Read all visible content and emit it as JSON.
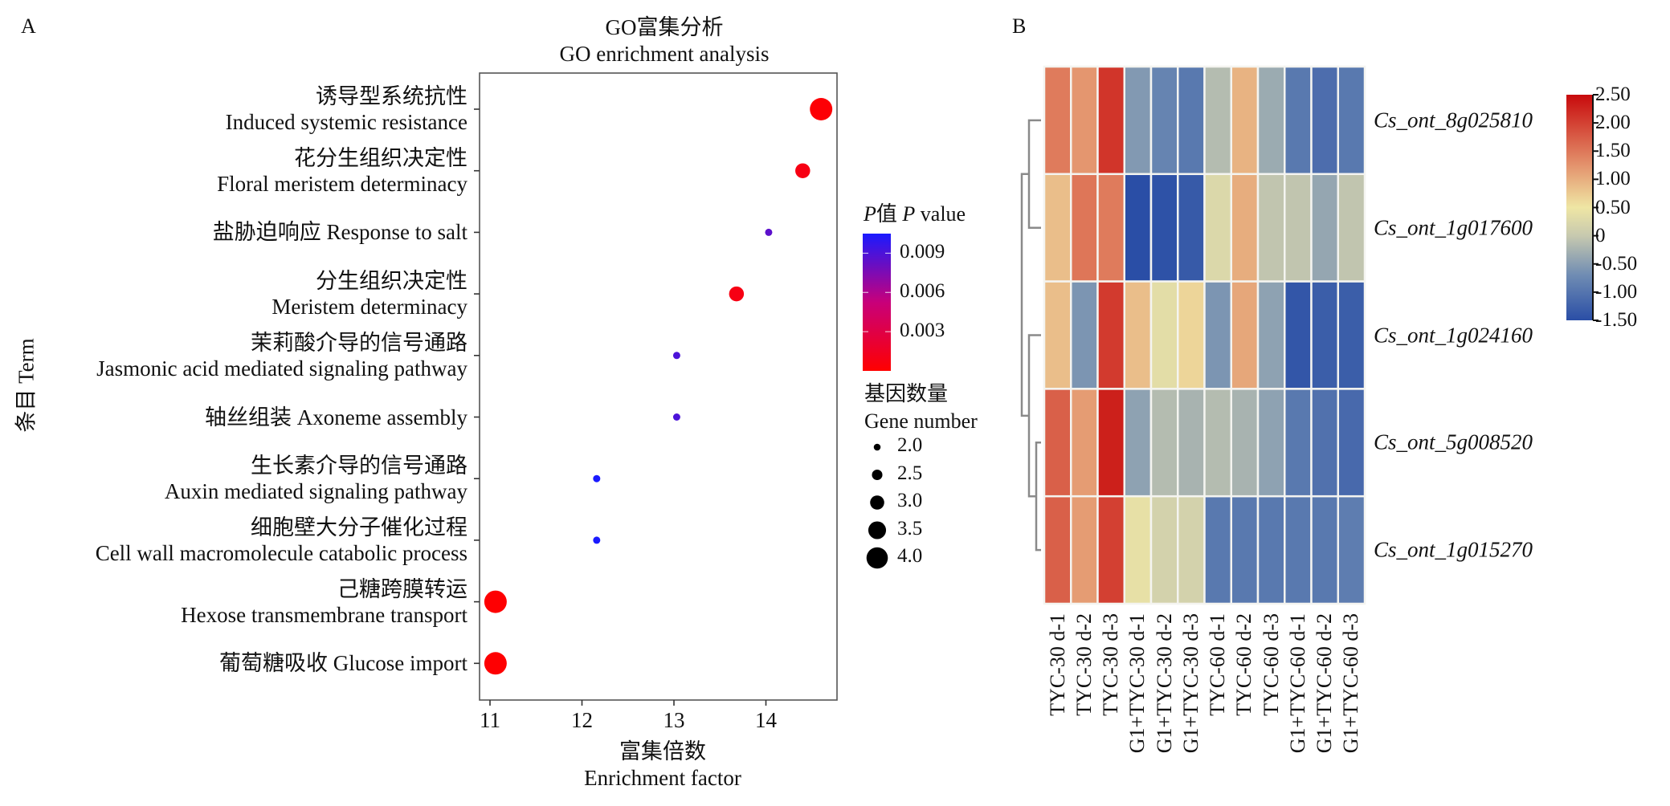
{
  "panel_a": {
    "label": "A",
    "title_cn": "GO富集分析",
    "title_en": "GO enrichment analysis",
    "ylabel": "条目 Term",
    "xlabel_cn": "富集倍数",
    "xlabel_en": "Enrichment factor",
    "pvalue_legend_title": "P值 P value",
    "pvalue_legend_ticks": [
      "0.009",
      "0.006",
      "0.003"
    ],
    "gene_legend_title_cn": "基因数量",
    "gene_legend_title_en": "Gene number",
    "gene_legend_items": [
      "2.0",
      "2.5",
      "3.0",
      "3.5",
      "4.0"
    ]
  },
  "panel_b": {
    "label": "B",
    "colorbar_ticks": [
      "2.50",
      "2.00",
      "1.50",
      "1.00",
      "0.50",
      "0",
      "-0.50",
      "-1.00",
      "-1.50"
    ]
  },
  "chart_data": [
    {
      "type": "scatter",
      "title": "GO富集分析 GO enrichment analysis",
      "xlabel": "富集倍数 Enrichment factor",
      "ylabel": "条目 Term",
      "xlim": [
        10.9,
        14.78
      ],
      "xticks": [
        11,
        12,
        13,
        14
      ],
      "grid": false,
      "legend_placement": "right",
      "color_scale": {
        "name": "P value",
        "range": [
          0.0,
          0.0105
        ],
        "low_color": "#ff0000",
        "high_color": "#1a1aff"
      },
      "size_scale": {
        "name": "Gene number",
        "range": [
          2.0,
          4.0
        ]
      },
      "points": [
        {
          "term_cn": "诱导型系统抗性",
          "term_en": "Induced systemic resistance",
          "x": 14.6,
          "gene_number": 4,
          "p_value": 0.0002
        },
        {
          "term_cn": "花分生组织决定性",
          "term_en": "Floral meristem determinacy",
          "x": 14.4,
          "gene_number": 3,
          "p_value": 0.0008
        },
        {
          "term_cn": "盐胁迫响应",
          "term_en": "Response to salt",
          "x": 14.03,
          "gene_number": 2,
          "p_value": 0.0085
        },
        {
          "term_cn": "分生组织决定性",
          "term_en": "Meristem determinacy",
          "x": 13.68,
          "gene_number": 3,
          "p_value": 0.0008
        },
        {
          "term_cn": "茉莉酸介导的信号通路",
          "term_en": "Jasmonic acid mediated signaling pathway",
          "x": 13.03,
          "gene_number": 2,
          "p_value": 0.009
        },
        {
          "term_cn": "轴丝组装",
          "term_en": "Axoneme assembly",
          "x": 13.03,
          "gene_number": 2,
          "p_value": 0.009
        },
        {
          "term_cn": "生长素介导的信号通路",
          "term_en": "Auxin mediated signaling pathway",
          "x": 12.16,
          "gene_number": 2,
          "p_value": 0.0105
        },
        {
          "term_cn": "细胞壁大分子催化过程",
          "term_en": "Cell wall macromolecule catabolic process",
          "x": 12.16,
          "gene_number": 2,
          "p_value": 0.0105
        },
        {
          "term_cn": "己糖跨膜转运",
          "term_en": "Hexose transmembrane transport",
          "x": 11.06,
          "gene_number": 4,
          "p_value": 0.0001
        },
        {
          "term_cn": "葡萄糖吸收",
          "term_en": "Glucose import",
          "x": 11.06,
          "gene_number": 4,
          "p_value": 0.0001
        }
      ]
    },
    {
      "type": "heatmap",
      "title": "",
      "columns": [
        "TYC-30 d-1",
        "TYC-30 d-2",
        "TYC-30 d-3",
        "G1+TYC-30 d-1",
        "G1+TYC-30 d-2",
        "G1+TYC-30 d-3",
        "TYC-60 d-1",
        "TYC-60 d-2",
        "TYC-60 d-3",
        "G1+TYC-60 d-1",
        "G1+TYC-60 d-2",
        "G1+TYC-60 d-3"
      ],
      "rows": [
        "Cs_ont_8g025810",
        "Cs_ont_1g017600",
        "Cs_ont_1g024160",
        "Cs_ont_5g008520",
        "Cs_ont_1g015270"
      ],
      "values": [
        [
          1.45,
          1.2,
          2.1,
          -0.55,
          -0.8,
          -0.95,
          -0.15,
          0.95,
          -0.35,
          -0.95,
          -1.1,
          -0.95
        ],
        [
          0.85,
          1.5,
          1.45,
          -1.5,
          -1.45,
          -1.35,
          0.25,
          1.0,
          -0.05,
          -0.05,
          -0.4,
          -0.05
        ],
        [
          0.85,
          -0.6,
          2.05,
          0.85,
          0.35,
          0.65,
          -0.6,
          1.05,
          -0.45,
          -1.4,
          -1.3,
          -1.3
        ],
        [
          1.7,
          1.15,
          2.3,
          -0.45,
          -0.15,
          -0.25,
          -0.15,
          -0.25,
          -0.45,
          -0.95,
          -1.05,
          -1.15
        ],
        [
          1.7,
          1.15,
          2.0,
          0.4,
          0.15,
          0.15,
          -0.95,
          -0.95,
          -0.95,
          -0.95,
          -0.95,
          -0.9
        ]
      ],
      "colorbar": {
        "min": -1.5,
        "max": 2.5,
        "ticks": [
          2.5,
          2.0,
          1.5,
          1.0,
          0.5,
          0,
          -0.5,
          -1.0,
          -1.5
        ],
        "colors": [
          "#2a4ea6",
          "#6f8cb3",
          "#c7c9af",
          "#efe6a4",
          "#e4966f",
          "#c80a0c"
        ]
      },
      "row_dendrogram": "((Cs_ont_8g025810,Cs_ont_1g017600),(Cs_ont_1g024160,(Cs_ont_5g008520,Cs_ont_1g015270)))",
      "legend_placement": "right"
    }
  ]
}
